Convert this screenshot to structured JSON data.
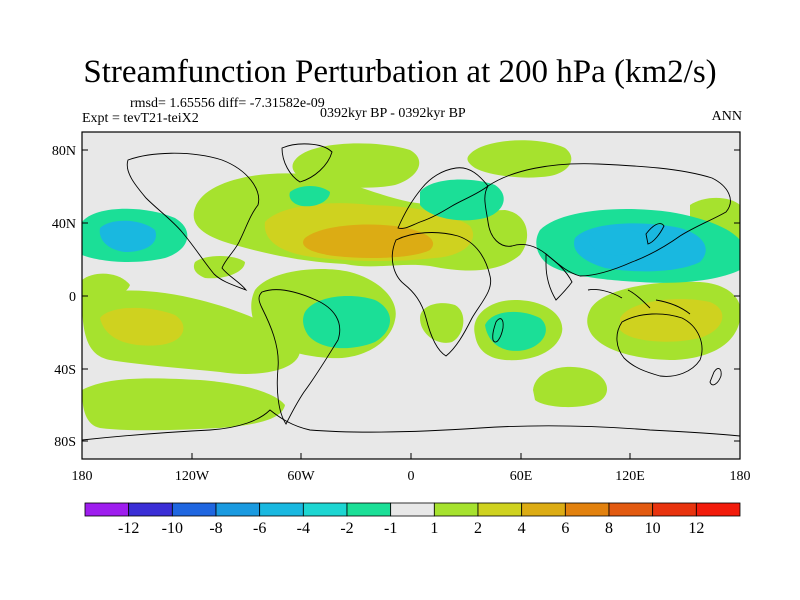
{
  "title": "Streamfunction Perturbation at 200 hPa (km2/s)",
  "stats_line": "rmsd= 1.65556 diff= -7.31582e-09",
  "experiment_line": "Expt = tevT21-teiX2",
  "period_line": "0392kyr BP - 0392kyr BP",
  "season": "ANN",
  "axes": {
    "lat_ticks": [
      "80N",
      "40N",
      "0",
      "40S",
      "80S"
    ],
    "lon_ticks": [
      "180",
      "120W",
      "60W",
      "0",
      "60E",
      "120E",
      "180"
    ]
  },
  "colorbar": {
    "labels": [
      "-12",
      "-10",
      "-8",
      "-6",
      "-4",
      "-2",
      "-1",
      "1",
      "2",
      "4",
      "6",
      "8",
      "10",
      "12"
    ],
    "colors": [
      "#9e1dee",
      "#3b2ed6",
      "#1f66e0",
      "#1a9ae0",
      "#19b8e0",
      "#1dd6d2",
      "#1bdf97",
      "#e8e8e8",
      "#a6e22e",
      "#cfd21f",
      "#dcac14",
      "#e2810e",
      "#e25a10",
      "#e8330e",
      "#f21b0b"
    ]
  },
  "colors": {
    "background_no_anomaly": "#e8e8e8",
    "coast_line": "#000000"
  }
}
